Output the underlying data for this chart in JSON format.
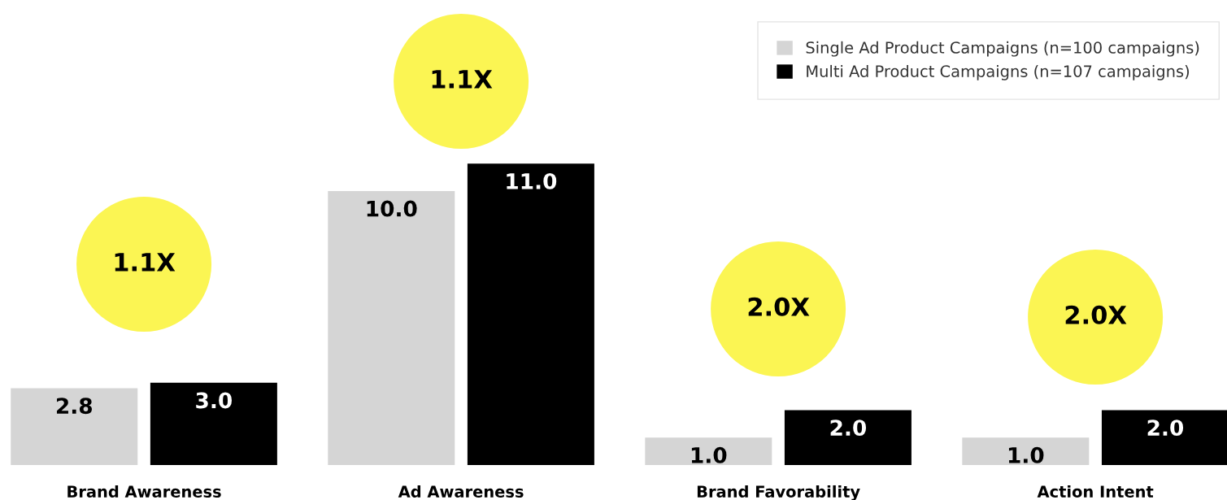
{
  "chart_data": {
    "type": "bar",
    "categories": [
      "Brand Awareness",
      "Ad Awareness",
      "Brand Favorability",
      "Action Intent"
    ],
    "series": [
      {
        "name": "Single Ad Product Campaigns (n=100 campaigns)",
        "color": "#d5d5d5",
        "values": [
          2.8,
          10.0,
          1.0,
          1.0
        ],
        "value_labels": [
          "2.8",
          "10.0",
          "1.0",
          "1.0"
        ]
      },
      {
        "name": "Multi Ad Product Campaigns (n=107 campaigns)",
        "color": "#000000",
        "values": [
          3.0,
          11.0,
          2.0,
          2.0
        ],
        "value_labels": [
          "3.0",
          "11.0",
          "2.0",
          "2.0"
        ]
      }
    ],
    "tick_labels": "x",
    "legend": "top right",
    "annotations": [
      "1.1X",
      "1.1X",
      "2.0X",
      "2.0X"
    ]
  }
}
